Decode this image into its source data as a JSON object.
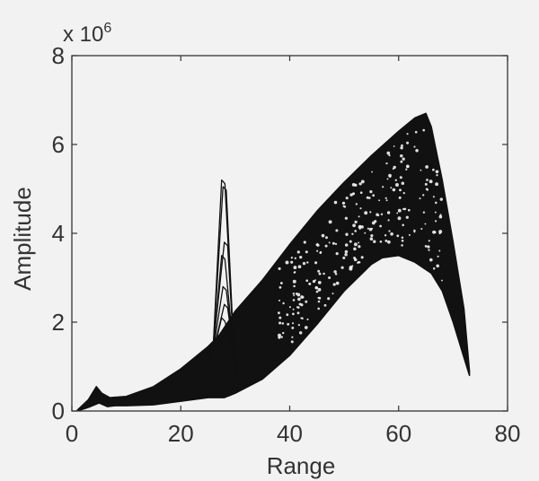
{
  "chart_data": {
    "type": "line",
    "title": "",
    "xlabel": "Range",
    "ylabel": "Amplitude",
    "y_multiplier_label": "x 10",
    "y_multiplier_exponent": "6",
    "xlim": [
      0,
      80
    ],
    "ylim": [
      0,
      8
    ],
    "x_ticks": [
      0,
      20,
      40,
      60,
      80
    ],
    "y_ticks": [
      0,
      2,
      4,
      6,
      8
    ],
    "grid": false,
    "legend": "none",
    "line_color": "#111111",
    "axis_color": "#333333",
    "envelope": {
      "upper": [
        [
          1,
          0.02
        ],
        [
          3,
          0.25
        ],
        [
          4.5,
          0.55
        ],
        [
          5.5,
          0.4
        ],
        [
          7,
          0.3
        ],
        [
          10,
          0.33
        ],
        [
          15,
          0.55
        ],
        [
          20,
          0.95
        ],
        [
          25,
          1.45
        ],
        [
          27,
          1.7
        ],
        [
          30,
          2.25
        ],
        [
          35,
          2.95
        ],
        [
          40,
          3.75
        ],
        [
          45,
          4.5
        ],
        [
          50,
          5.15
        ],
        [
          55,
          5.75
        ],
        [
          60,
          6.3
        ],
        [
          63,
          6.6
        ],
        [
          65,
          6.7
        ],
        [
          66,
          6.4
        ],
        [
          68,
          5.2
        ],
        [
          70,
          3.8
        ],
        [
          72,
          2.3
        ],
        [
          73,
          0.9
        ]
      ],
      "lower": [
        [
          73,
          0.8
        ],
        [
          72,
          1.2
        ],
        [
          70,
          2.0
        ],
        [
          68,
          2.7
        ],
        [
          66,
          3.1
        ],
        [
          63,
          3.35
        ],
        [
          60,
          3.5
        ],
        [
          57,
          3.45
        ],
        [
          55,
          3.3
        ],
        [
          50,
          2.7
        ],
        [
          45,
          1.95
        ],
        [
          40,
          1.25
        ],
        [
          35,
          0.72
        ],
        [
          30,
          0.4
        ],
        [
          28,
          0.3
        ],
        [
          25,
          0.3
        ],
        [
          20,
          0.22
        ],
        [
          15,
          0.14
        ],
        [
          10,
          0.12
        ],
        [
          8,
          0.12
        ],
        [
          6.5,
          0.1
        ],
        [
          5,
          0.18
        ],
        [
          3,
          0.08
        ],
        [
          1,
          0.0
        ]
      ]
    },
    "spike": {
      "x_range": [
        25.5,
        30.5
      ],
      "peak_x": 28,
      "peak_values": [
        5.2,
        5.05,
        3.8,
        3.5,
        2.8,
        2.4,
        2.1,
        1.8
      ]
    },
    "point_count": 60
  }
}
